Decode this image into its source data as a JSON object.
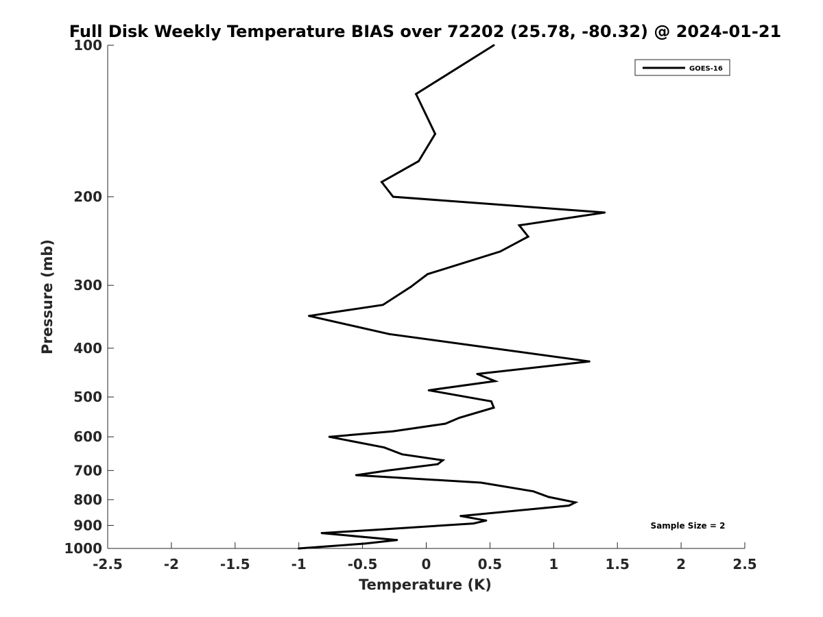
{
  "chart_data": {
    "type": "line",
    "title": "Full Disk Weekly Temperature BIAS over 72202 (25.78, -80.32) @ 2024-01-21",
    "xlabel": "Temperature (K)",
    "ylabel": "Pressure (mb)",
    "xlim": [
      -2.5,
      2.5
    ],
    "ylim": [
      100,
      1000
    ],
    "yscale": "log",
    "y_reversed": true,
    "grid": false,
    "legend_position": "top-right",
    "x_ticks": [
      -2.5,
      -2,
      -1.5,
      -1,
      -0.5,
      0,
      0.5,
      1,
      1.5,
      2,
      2.5
    ],
    "x_tick_labels": [
      "-2.5",
      "-2",
      "-1.5",
      "-1",
      "-0.5",
      "0",
      "0.5",
      "1",
      "1.5",
      "2",
      "2.5"
    ],
    "y_ticks": [
      100,
      200,
      300,
      400,
      500,
      600,
      700,
      800,
      900,
      1000
    ],
    "y_tick_labels": [
      "100",
      "200",
      "300",
      "400",
      "500",
      "600",
      "700",
      "800",
      "900",
      "1000"
    ],
    "annotation": "Sample Size = 2",
    "series": [
      {
        "name": "GOES-16",
        "color": "#000000",
        "points": [
          {
            "x": 0.53,
            "y": 100
          },
          {
            "x": -0.08,
            "y": 125
          },
          {
            "x": 0.07,
            "y": 150
          },
          {
            "x": -0.06,
            "y": 170
          },
          {
            "x": -0.35,
            "y": 187
          },
          {
            "x": -0.26,
            "y": 200
          },
          {
            "x": 1.4,
            "y": 215
          },
          {
            "x": 0.73,
            "y": 228
          },
          {
            "x": 0.8,
            "y": 240
          },
          {
            "x": 0.58,
            "y": 257
          },
          {
            "x": 0.01,
            "y": 285
          },
          {
            "x": -0.12,
            "y": 302
          },
          {
            "x": -0.34,
            "y": 328
          },
          {
            "x": -0.92,
            "y": 345
          },
          {
            "x": -0.29,
            "y": 375
          },
          {
            "x": 1.28,
            "y": 425
          },
          {
            "x": 0.4,
            "y": 450
          },
          {
            "x": 0.54,
            "y": 465
          },
          {
            "x": 0.02,
            "y": 485
          },
          {
            "x": 0.51,
            "y": 510
          },
          {
            "x": 0.53,
            "y": 525
          },
          {
            "x": 0.26,
            "y": 550
          },
          {
            "x": 0.15,
            "y": 565
          },
          {
            "x": -0.26,
            "y": 585
          },
          {
            "x": -0.76,
            "y": 600
          },
          {
            "x": -0.33,
            "y": 630
          },
          {
            "x": -0.19,
            "y": 650
          },
          {
            "x": 0.13,
            "y": 668
          },
          {
            "x": 0.09,
            "y": 680
          },
          {
            "x": -0.3,
            "y": 700
          },
          {
            "x": -0.55,
            "y": 715
          },
          {
            "x": 0.43,
            "y": 740
          },
          {
            "x": 0.84,
            "y": 770
          },
          {
            "x": 0.96,
            "y": 790
          },
          {
            "x": 1.17,
            "y": 810
          },
          {
            "x": 1.12,
            "y": 822
          },
          {
            "x": 0.27,
            "y": 862
          },
          {
            "x": 0.47,
            "y": 880
          },
          {
            "x": 0.37,
            "y": 892
          },
          {
            "x": -0.39,
            "y": 918
          },
          {
            "x": -0.82,
            "y": 932
          },
          {
            "x": -0.23,
            "y": 962
          },
          {
            "x": -0.48,
            "y": 978
          },
          {
            "x": -1.0,
            "y": 1000
          }
        ]
      }
    ]
  }
}
